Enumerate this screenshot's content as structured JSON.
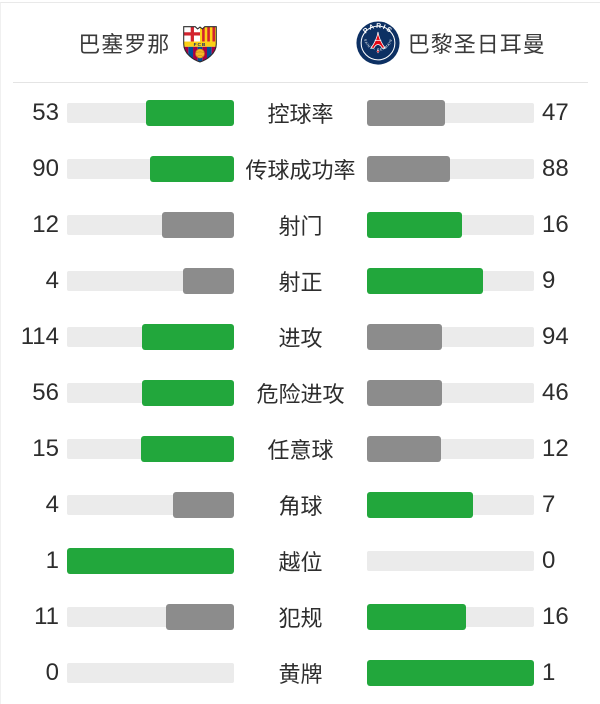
{
  "colors": {
    "winner_bar": "#22a73c",
    "loser_bar": "#8c8c8c",
    "track": "#ebebeb",
    "barca_maroon": "#a50044",
    "barca_blue": "#004d98",
    "barca_gold": "#fcd116",
    "psg_navy": "#0d3063",
    "psg_red": "#e30613"
  },
  "header": {
    "home": {
      "name": "巴塞罗那",
      "crest_text": "FCB"
    },
    "away": {
      "name": "巴黎圣日耳曼",
      "logo_top_text": "PARIS",
      "logo_bottom_text": "SAINT - GERMAIN"
    }
  },
  "stats": {
    "rows": [
      {
        "label": "控球率",
        "home": 53,
        "away": 47
      },
      {
        "label": "传球成功率",
        "home": 90,
        "away": 88
      },
      {
        "label": "射门",
        "home": 12,
        "away": 16
      },
      {
        "label": "射正",
        "home": 4,
        "away": 9
      },
      {
        "label": "进攻",
        "home": 114,
        "away": 94
      },
      {
        "label": "危险进攻",
        "home": 56,
        "away": 46
      },
      {
        "label": "任意球",
        "home": 15,
        "away": 12
      },
      {
        "label": "角球",
        "home": 4,
        "away": 7
      },
      {
        "label": "越位",
        "home": 1,
        "away": 0
      },
      {
        "label": "犯规",
        "home": 11,
        "away": 16
      },
      {
        "label": "黄牌",
        "home": 0,
        "away": 1
      }
    ]
  },
  "chart_data": {
    "type": "bar",
    "title": "巴塞罗那 vs 巴黎圣日耳曼",
    "categories": [
      "控球率",
      "传球成功率",
      "射门",
      "射正",
      "进攻",
      "危险进攻",
      "任意球",
      "角球",
      "越位",
      "犯规",
      "黄牌"
    ],
    "series": [
      {
        "name": "巴塞罗那",
        "values": [
          53,
          90,
          12,
          4,
          114,
          56,
          15,
          4,
          1,
          11,
          0
        ]
      },
      {
        "name": "巴黎圣日耳曼",
        "values": [
          47,
          88,
          16,
          9,
          94,
          46,
          12,
          7,
          0,
          16,
          1
        ]
      }
    ],
    "layout_hint": "each row: pair of mirrored horizontal bars growing outward from center label; bar length = value/(home+away); green = higher value of the pair, gray = lower"
  }
}
